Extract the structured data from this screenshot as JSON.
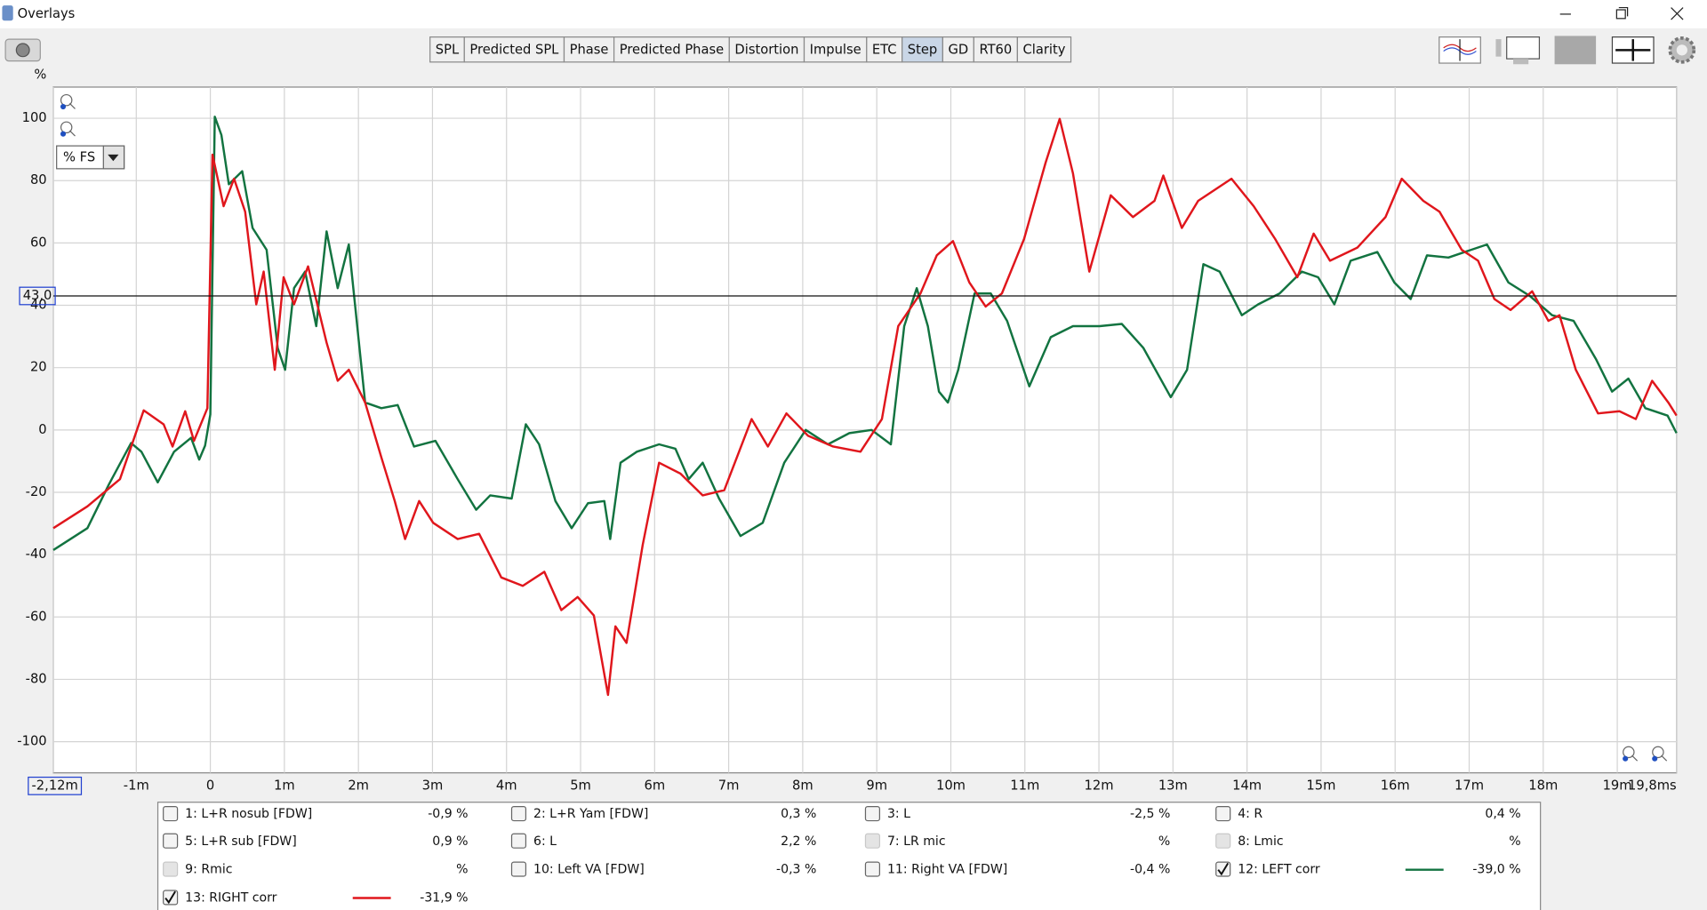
{
  "window": {
    "title": "Overlays"
  },
  "toolbar": {
    "tabs": [
      "SPL",
      "Predicted SPL",
      "Phase",
      "Predicted Phase",
      "Distortion",
      "Impulse",
      "ETC",
      "Step",
      "GD",
      "RT60",
      "Clarity"
    ],
    "selected_tab": 7
  },
  "chart_data": {
    "type": "line",
    "y_unit": "%",
    "scale_selector": "% FS",
    "cursor": {
      "value": 43,
      "label": "43,0"
    },
    "xlim": [
      -2.12,
      19.8
    ],
    "xticks": [
      {
        "value": -2.12,
        "label": "-2,12m"
      },
      {
        "value": -1,
        "label": "-1m"
      },
      0,
      {
        "value": 1,
        "label": "1m"
      },
      {
        "value": 2,
        "label": "2m"
      },
      {
        "value": 3,
        "label": "3m"
      },
      {
        "value": 4,
        "label": "4m"
      },
      {
        "value": 5,
        "label": "5m"
      },
      {
        "value": 6,
        "label": "6m"
      },
      {
        "value": 7,
        "label": "7m"
      },
      {
        "value": 8,
        "label": "8m"
      },
      {
        "value": 9,
        "label": "9m"
      },
      {
        "value": 10,
        "label": "10m"
      },
      {
        "value": 11,
        "label": "11m"
      },
      {
        "value": 12,
        "label": "12m"
      },
      {
        "value": 13,
        "label": "13m"
      },
      {
        "value": 14,
        "label": "14m"
      },
      {
        "value": 15,
        "label": "15m"
      },
      {
        "value": 16,
        "label": "16m"
      },
      {
        "value": 17,
        "label": "17m"
      },
      {
        "value": 18,
        "label": "18m"
      },
      {
        "value": 19,
        "label": "19m"
      },
      {
        "value": 19.8,
        "label": "19,8ms"
      }
    ],
    "ylim": [
      -110,
      110
    ],
    "yticks": [
      -100,
      -80,
      -60,
      -40,
      -20,
      0,
      20,
      40,
      60,
      80,
      100
    ],
    "grid": true,
    "series": [
      {
        "name": "12: LEFT corr",
        "color": "#127340",
        "readout": "-39,0 %",
        "checked": true,
        "x": [
          -2.12,
          -1.66,
          -1.37,
          -1.07,
          -0.93,
          -0.71,
          -0.49,
          -0.26,
          -0.15,
          -0.07,
          0,
          0.06,
          0.15,
          0.25,
          0.43,
          0.57,
          0.76,
          0.91,
          1.01,
          1.13,
          1.28,
          1.43,
          1.57,
          1.72,
          1.87,
          2.09,
          2.31,
          2.53,
          2.75,
          3.04,
          3.34,
          3.59,
          3.78,
          4.07,
          4.26,
          4.44,
          4.66,
          4.88,
          5.1,
          5.32,
          5.4,
          5.54,
          5.76,
          6.06,
          6.28,
          6.46,
          6.65,
          6.87,
          7.16,
          7.46,
          7.75,
          8.04,
          8.34,
          8.63,
          8.93,
          9.19,
          9.37,
          9.54,
          9.69,
          9.84,
          9.96,
          10.1,
          10.32,
          10.54,
          10.76,
          11.06,
          11.35,
          11.65,
          12.01,
          12.31,
          12.6,
          12.97,
          13.19,
          13.41,
          13.63,
          13.93,
          14.15,
          14.44,
          14.74,
          14.96,
          15.18,
          15.4,
          15.76,
          15.99,
          16.21,
          16.43,
          16.72,
          16.94,
          17.24,
          17.53,
          17.82,
          18.12,
          18.41,
          18.71,
          18.93,
          19.15,
          19.38,
          19.68,
          19.8
        ],
        "values": [
          -38.5,
          -31.5,
          -17.5,
          -4.2,
          -7,
          -16.8,
          -7,
          -2.5,
          -9.5,
          -5,
          5,
          100.5,
          94.6,
          78.8,
          83,
          64.8,
          57.8,
          26.3,
          19.3,
          45.5,
          50.8,
          33.3,
          63.7,
          45.5,
          59.5,
          8.8,
          7,
          8,
          -5.3,
          -3.5,
          -15.8,
          -25.6,
          -21,
          -22,
          1.8,
          -4.6,
          -22.8,
          -31.5,
          -23.5,
          -22.8,
          -35,
          -10.5,
          -7,
          -4.6,
          -6,
          -15.8,
          -10.5,
          -22,
          -34,
          -29.8,
          -10.5,
          0,
          -4.6,
          -1,
          0,
          -4.6,
          33.3,
          45.5,
          33.3,
          12.3,
          8.8,
          19.3,
          43.8,
          43.8,
          35,
          14,
          29.8,
          33.3,
          33.3,
          34,
          26.3,
          10.5,
          19.3,
          53.2,
          50.8,
          36.8,
          40.3,
          43.8,
          50.8,
          49,
          40.3,
          54.3,
          57.1,
          47.3,
          42,
          56,
          55.3,
          57.1,
          59.5,
          47.3,
          43,
          36.8,
          35,
          22.8,
          12.3,
          16.5,
          7,
          4.6,
          -1
        ]
      },
      {
        "name": "13: RIGHT corr",
        "color": "#e0161c",
        "readout": "-31,9 %",
        "checked": true,
        "x": [
          -2.12,
          -1.66,
          -1.22,
          -0.9,
          -0.63,
          -0.51,
          -0.34,
          -0.22,
          -0.04,
          0.03,
          0.18,
          0.32,
          0.47,
          0.62,
          0.72,
          0.87,
          0.99,
          1.13,
          1.32,
          1.57,
          1.72,
          1.87,
          2.09,
          2.31,
          2.49,
          2.63,
          2.82,
          3.01,
          3.34,
          3.63,
          3.93,
          4.22,
          4.51,
          4.74,
          4.96,
          5.18,
          5.37,
          5.47,
          5.62,
          5.84,
          6.06,
          6.35,
          6.65,
          6.94,
          7.31,
          7.53,
          7.78,
          8.07,
          8.41,
          8.78,
          9.07,
          9.29,
          9.59,
          9.81,
          10.03,
          10.25,
          10.47,
          10.69,
          10.99,
          11.28,
          11.47,
          11.65,
          11.87,
          12.16,
          12.46,
          12.75,
          12.87,
          13.12,
          13.34,
          13.79,
          14.09,
          14.38,
          14.68,
          14.9,
          15.12,
          15.49,
          15.87,
          16.09,
          16.38,
          16.6,
          16.9,
          17.12,
          17.34,
          17.56,
          17.85,
          18.07,
          18.22,
          18.44,
          18.74,
          19.03,
          19.25,
          19.47,
          19.69,
          19.8
        ],
        "values": [
          -31.5,
          -24.5,
          -15.8,
          6.3,
          1.8,
          -5.3,
          6,
          -3.5,
          7,
          88.3,
          71.8,
          80.6,
          70,
          40.3,
          50.8,
          19.3,
          49,
          40.3,
          52.5,
          28,
          15.8,
          19.3,
          8.8,
          -8.8,
          -22.8,
          -35,
          -22.8,
          -29.8,
          -35,
          -33.3,
          -47.3,
          -50,
          -45.5,
          -57.8,
          -53.6,
          -59.5,
          -85,
          -63,
          -68.3,
          -36.8,
          -10.5,
          -14,
          -21,
          -19.3,
          3.5,
          -5.3,
          5.3,
          -1.8,
          -5.3,
          -7,
          3.5,
          33.3,
          43.8,
          56,
          60.6,
          47.3,
          39.6,
          43.8,
          61.3,
          85.8,
          99.8,
          82.3,
          50.8,
          75.3,
          68.3,
          73.5,
          81.6,
          64.8,
          73.5,
          80.6,
          71.8,
          61.3,
          49,
          63,
          54.3,
          58.5,
          68.3,
          80.6,
          73.5,
          70,
          57.8,
          54.3,
          42,
          38.5,
          44.5,
          35,
          36.8,
          19.3,
          5.3,
          6,
          3.5,
          15.8,
          8.8,
          4.6
        ]
      }
    ]
  },
  "legend_panel": {
    "entries": [
      {
        "label": "1: L+R nosub [FDW]",
        "readout": "-0,9 %",
        "color": "#d01818",
        "checked": false,
        "enabled": true
      },
      {
        "label": "2: L+R Yam [FDW]",
        "readout": "0,3 %",
        "color": "#1a7a3a",
        "checked": false,
        "enabled": true
      },
      {
        "label": "3: L",
        "readout": "-2,5 %",
        "color": "#5050e0",
        "checked": false,
        "enabled": true
      },
      {
        "label": "4: R",
        "readout": "0,4 %",
        "color": "#e88a00",
        "checked": false,
        "enabled": true
      },
      {
        "label": "5: L+R sub [FDW]",
        "readout": "0,9 %",
        "color": "#1f9a2a",
        "checked": false,
        "enabled": true
      },
      {
        "label": "6: L",
        "readout": "2,2 %",
        "color": "#2060d0",
        "checked": false,
        "enabled": true
      },
      {
        "label": "7: LR mic",
        "readout": "%",
        "color": "#a8a8a8",
        "checked": false,
        "enabled": false
      },
      {
        "label": "8: Lmic",
        "readout": "%",
        "color": "#a8a8a8",
        "checked": false,
        "enabled": false
      },
      {
        "label": "9: Rmic",
        "readout": "%",
        "color": "#a8a8a8",
        "checked": false,
        "enabled": false
      },
      {
        "label": "10: Left VA [FDW]",
        "readout": "-0,3 %",
        "color": "#c020d0",
        "checked": false,
        "enabled": true
      },
      {
        "label": "11: Right VA [FDW]",
        "readout": "-0,4 %",
        "color": "#c00000",
        "checked": false,
        "enabled": true
      }
    ]
  }
}
